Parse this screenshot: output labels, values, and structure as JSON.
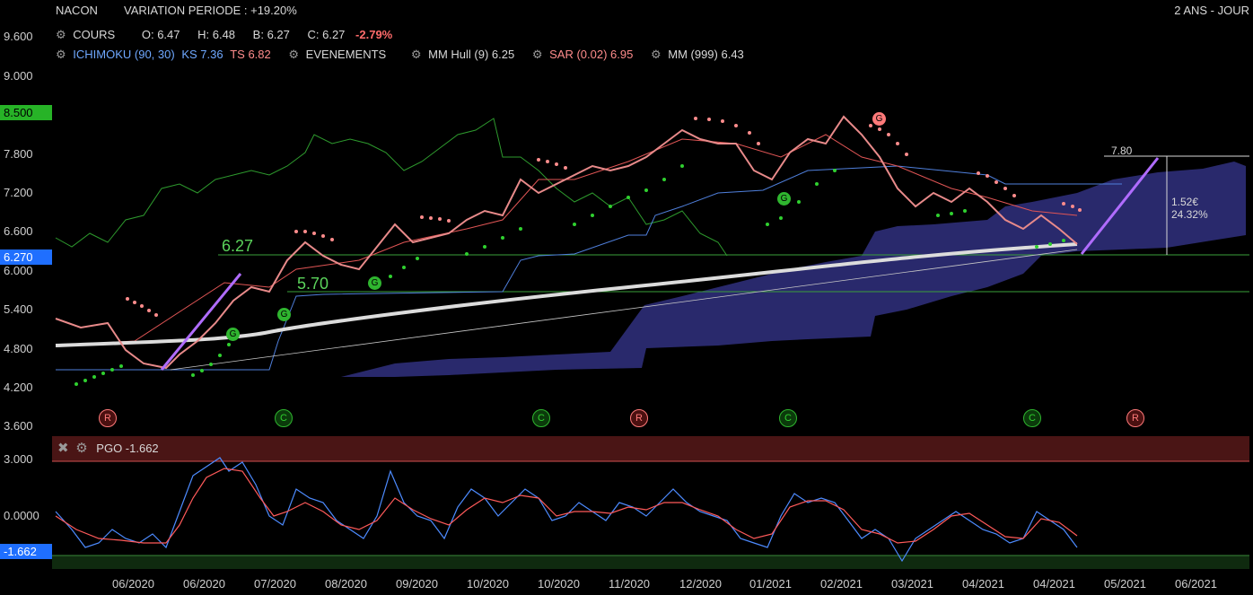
{
  "header": {
    "symbol": "NACON",
    "variation": "VARIATION PERIODE : +19.20%",
    "range": "2 ANS - JOUR"
  },
  "legend_row1": {
    "cours": "COURS",
    "open": "O: 6.47",
    "high": "H: 6.48",
    "low": "B: 6.27",
    "close": "C: 6.27",
    "change": "-2.79%"
  },
  "legend_row2": {
    "ichimoku": "ICHIMOKU (90, 30)",
    "ks": "KS 7.36",
    "ts": "TS 6.82",
    "evenements": "EVENEMENTS",
    "hull": "MM Hull (9) 6.25",
    "sar": "SAR (0.02) 6.95",
    "mm999": "MM (999) 6.43"
  },
  "pgo": {
    "label": "PGO -1.662",
    "current": "-1.662"
  },
  "y_axis_main": [
    "9.600",
    "9.000",
    "7.800",
    "7.200",
    "6.600",
    "6.000",
    "5.400",
    "4.800",
    "4.200",
    "3.600"
  ],
  "y_axis_pgo": [
    "3.000",
    "0.0000"
  ],
  "badges": {
    "level_top": "8.500",
    "level_current": "6.270"
  },
  "x_axis": [
    "06/2020",
    "06/2020",
    "07/2020",
    "08/2020",
    "09/2020",
    "10/2020",
    "10/2020",
    "11/2020",
    "12/2020",
    "01/2021",
    "02/2021",
    "03/2021",
    "04/2021",
    "04/2021",
    "05/2021",
    "06/2021"
  ],
  "annotations": {
    "level_627": "6.27",
    "level_570": "5.70",
    "target": "7.80",
    "gain_eur": "1.52€",
    "gain_pct": "24.32%"
  },
  "events": [
    {
      "letter": "R",
      "kind": "red"
    },
    {
      "letter": "C",
      "kind": "green"
    },
    {
      "letter": "C",
      "kind": "green"
    },
    {
      "letter": "R",
      "kind": "red"
    },
    {
      "letter": "C",
      "kind": "green"
    },
    {
      "letter": "C",
      "kind": "green"
    },
    {
      "letter": "R",
      "kind": "red"
    }
  ],
  "chart_markers": [
    "G",
    "G",
    "G",
    "G",
    "G"
  ],
  "colors": {
    "green_accent": "#2fb52f",
    "red_accent": "#ff6b6b",
    "cloud": "#2e2e78",
    "ichimoku_blue": "#6fa8ff",
    "sar_pink": "#ff8c8c",
    "pgo_band": "#4a1515"
  },
  "icons": [
    "gear-icon",
    "close-icon"
  ]
}
